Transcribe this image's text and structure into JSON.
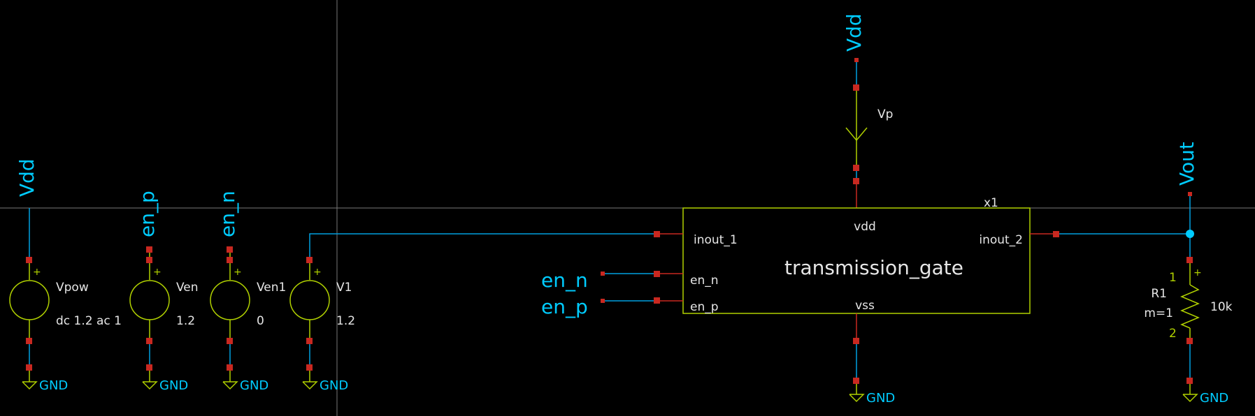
{
  "colors": {
    "background": "#000000",
    "wire": "#00a0e0",
    "component": "#b0d000",
    "pin": "#c82820",
    "net_label": "#00ccff",
    "text": "#e6e6e6",
    "crosshair": "#777777"
  },
  "sources": [
    {
      "label": "Vdd",
      "name": "Vpow",
      "value": "dc 1.2 ac 1",
      "gnd": "GND",
      "plus": "+"
    },
    {
      "label": "en_p",
      "name": "Ven",
      "value": "1.2",
      "gnd": "GND",
      "plus": "+"
    },
    {
      "label": "en_n",
      "name": "Ven1",
      "value": "0",
      "gnd": "GND",
      "plus": "+"
    },
    {
      "label": "",
      "name": "V1",
      "value": "1.2",
      "gnd": "GND",
      "plus": "+"
    }
  ],
  "block": {
    "instance": "x1",
    "title": "transmission_gate",
    "pins": {
      "vdd": "vdd",
      "vss": "vss",
      "inout_1": "inout_1",
      "inout_2": "inout_2",
      "en_n": "en_n",
      "en_p": "en_p"
    }
  },
  "top": {
    "label": "Vdd",
    "probe": "Vp"
  },
  "block_ground": "GND",
  "input_labels": {
    "en_n": "en_n",
    "en_p": "en_p"
  },
  "output": {
    "label": "Vout"
  },
  "resistor": {
    "name": "R1",
    "mult": "m=1",
    "value": "10k",
    "pin1": "1",
    "pin2": "2",
    "plus": "+",
    "gnd": "GND"
  }
}
